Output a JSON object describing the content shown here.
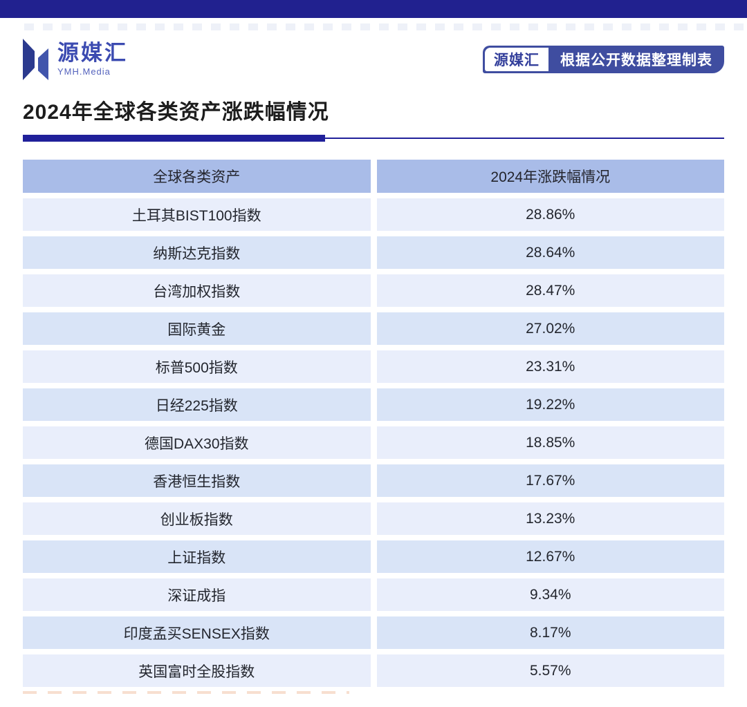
{
  "brand": {
    "name": "源媒汇",
    "sub": "YMH.Media"
  },
  "badge": {
    "brand": "源媒汇",
    "note": "根据公开数据整理制表"
  },
  "chart_data": {
    "type": "table",
    "title": "2024年全球各类资产涨跌幅情况",
    "columns": [
      "全球各类资产",
      "2024年涨跌幅情况"
    ],
    "rows": [
      [
        "土耳其BIST100指数",
        "28.86%"
      ],
      [
        "纳斯达克指数",
        "28.64%"
      ],
      [
        "台湾加权指数",
        "28.47%"
      ],
      [
        "国际黄金",
        "27.02%"
      ],
      [
        "标普500指数",
        "23.31%"
      ],
      [
        "日经225指数",
        "19.22%"
      ],
      [
        "德国DAX30指数",
        "18.85%"
      ],
      [
        "香港恒生指数",
        "17.67%"
      ],
      [
        "创业板指数",
        "13.23%"
      ],
      [
        "上证指数",
        "12.67%"
      ],
      [
        "深证成指",
        "9.34%"
      ],
      [
        "印度孟买SENSEX指数",
        "8.17%"
      ],
      [
        "英国富时全股指数",
        "5.57%"
      ]
    ],
    "values_numeric_pct": [
      28.86,
      28.64,
      28.47,
      27.02,
      23.31,
      19.22,
      18.85,
      17.67,
      13.23,
      12.67,
      9.34,
      8.17,
      5.57
    ],
    "legend_position": "none",
    "grid": false
  },
  "colors": {
    "top_bar": "#21218f",
    "accent_rule": "#20209a",
    "badge_bg": "#3f4da0",
    "badge_note_text": "#ffffff",
    "badge_brand_text": "#333f9b",
    "logo_blade_dark": "#2b3a8e",
    "logo_blade_light": "#4155ac",
    "logo_text": "#3c4bb1",
    "title_text": "#1d1d1d",
    "table_header_bg": "#a9bce8",
    "row_bg_light": "#e9eefb",
    "row_bg_shaded": "#d9e4f7",
    "cell_text": "#23262e"
  }
}
